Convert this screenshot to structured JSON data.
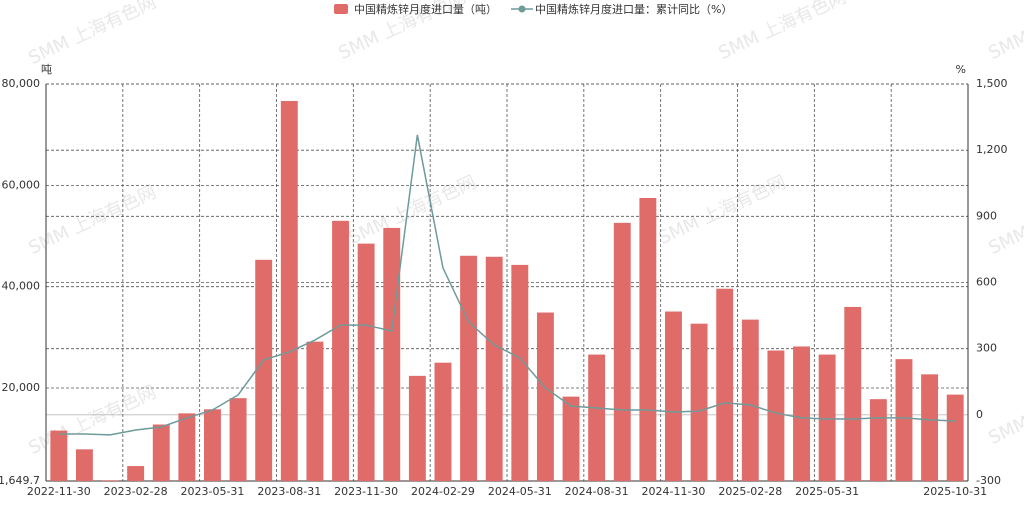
{
  "chart_data": {
    "type": "bar_line",
    "watermark": "SMM 上海有色网",
    "y_unit": "吨",
    "y2_unit": "%",
    "categories": [
      "2022-11-30",
      null,
      null,
      "2023-02-28",
      null,
      null,
      "2023-05-31",
      null,
      null,
      "2023-08-31",
      null,
      null,
      "2023-11-30",
      null,
      null,
      "2024-02-29",
      null,
      null,
      "2024-05-31",
      null,
      null,
      "2024-08-31",
      null,
      null,
      "2024-11-30",
      null,
      null,
      "2025-02-28",
      null,
      null,
      "2025-05-31",
      null,
      null,
      null,
      null,
      "2025-10-31"
    ],
    "series": [
      {
        "name": "中国精炼锌月度进口量（吨）",
        "color": "#e06c6a",
        "kind": "bar",
        "values": [
          11600,
          7900,
          1800,
          4600,
          12800,
          15000,
          15800,
          18000,
          45300,
          76650,
          29150,
          53000,
          48500,
          51600,
          22400,
          25000,
          46100,
          45900,
          44300,
          34900,
          18300,
          26600,
          52600,
          57500,
          35100,
          32700,
          39600,
          33500,
          27400,
          28200,
          26600,
          36000,
          17800,
          25700,
          22700,
          18700
        ]
      },
      {
        "name": "中国精炼锌月度进口量：累计同比（%）",
        "color": "#6e9a9a",
        "kind": "line",
        "axis": "y2",
        "values": [
          -87,
          -87,
          -91,
          -69,
          -55,
          -14,
          22,
          90,
          249,
          285,
          339,
          407,
          407,
          380,
          1269,
          666,
          421,
          317,
          258,
          122,
          40,
          31,
          22,
          22,
          13,
          17,
          54,
          45,
          8,
          -14,
          -19,
          -19,
          -14,
          -14,
          -23,
          -28
        ]
      }
    ],
    "ylim": [
      1649.7,
      80000
    ],
    "yticks": [
      {
        "value": 1649.7,
        "label": "1,649.7"
      },
      {
        "value": 20000,
        "label": "20,000"
      },
      {
        "value": 40000,
        "label": "40,000"
      },
      {
        "value": 60000,
        "label": "60,000"
      },
      {
        "value": 80000,
        "label": "80,000"
      }
    ],
    "y2lim": [
      -300,
      1500
    ],
    "y2ticks": [
      -300,
      0,
      300,
      600,
      900,
      {
        "value": 1200,
        "label": "1,200"
      },
      {
        "value": 1500,
        "label": "1,500"
      }
    ],
    "grid": true
  }
}
